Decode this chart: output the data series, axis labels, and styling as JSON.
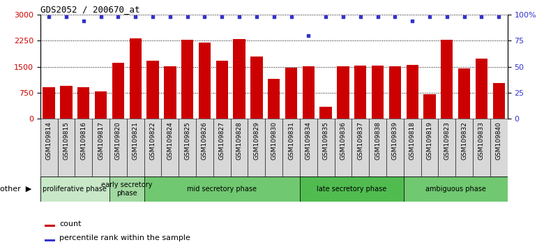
{
  "title": "GDS2052 / 200670_at",
  "samples": [
    "GSM109814",
    "GSM109815",
    "GSM109816",
    "GSM109817",
    "GSM109820",
    "GSM109821",
    "GSM109822",
    "GSM109824",
    "GSM109825",
    "GSM109826",
    "GSM109827",
    "GSM109828",
    "GSM109829",
    "GSM109830",
    "GSM109831",
    "GSM109834",
    "GSM109835",
    "GSM109836",
    "GSM109837",
    "GSM109838",
    "GSM109839",
    "GSM109818",
    "GSM109819",
    "GSM109823",
    "GSM109832",
    "GSM109833",
    "GSM109840"
  ],
  "counts": [
    900,
    950,
    900,
    780,
    1620,
    2320,
    1680,
    1520,
    2270,
    2200,
    1680,
    2290,
    1800,
    1150,
    1470,
    1520,
    340,
    1520,
    1530,
    1530,
    1520,
    1560,
    700,
    2280,
    1450,
    1730,
    1020
  ],
  "percentiles": [
    98,
    98,
    94,
    98,
    98,
    98,
    98,
    98,
    98,
    98,
    98,
    98,
    98,
    98,
    98,
    80,
    98,
    98,
    98,
    98,
    98,
    94,
    98,
    98,
    98,
    98,
    98
  ],
  "phases": [
    {
      "label": "proliferative phase",
      "start": 0,
      "end": 4,
      "color": "#c8e8c8"
    },
    {
      "label": "early secretory\nphase",
      "start": 4,
      "end": 6,
      "color": "#a0d8a0"
    },
    {
      "label": "mid secretory phase",
      "start": 6,
      "end": 15,
      "color": "#70c870"
    },
    {
      "label": "late secretory phase",
      "start": 15,
      "end": 21,
      "color": "#50bc50"
    },
    {
      "label": "ambiguous phase",
      "start": 21,
      "end": 27,
      "color": "#70c870"
    }
  ],
  "bar_color": "#cc0000",
  "dot_color": "#3333cc",
  "ylim_left": [
    0,
    3000
  ],
  "ylim_right": [
    0,
    100
  ],
  "yticks_left": [
    0,
    750,
    1500,
    2250,
    3000
  ],
  "yticks_right": [
    0,
    25,
    50,
    75,
    100
  ],
  "legend_items": [
    {
      "label": "count",
      "color": "#cc0000"
    },
    {
      "label": "percentile rank within the sample",
      "color": "#3333cc"
    }
  ],
  "other_label": "other"
}
